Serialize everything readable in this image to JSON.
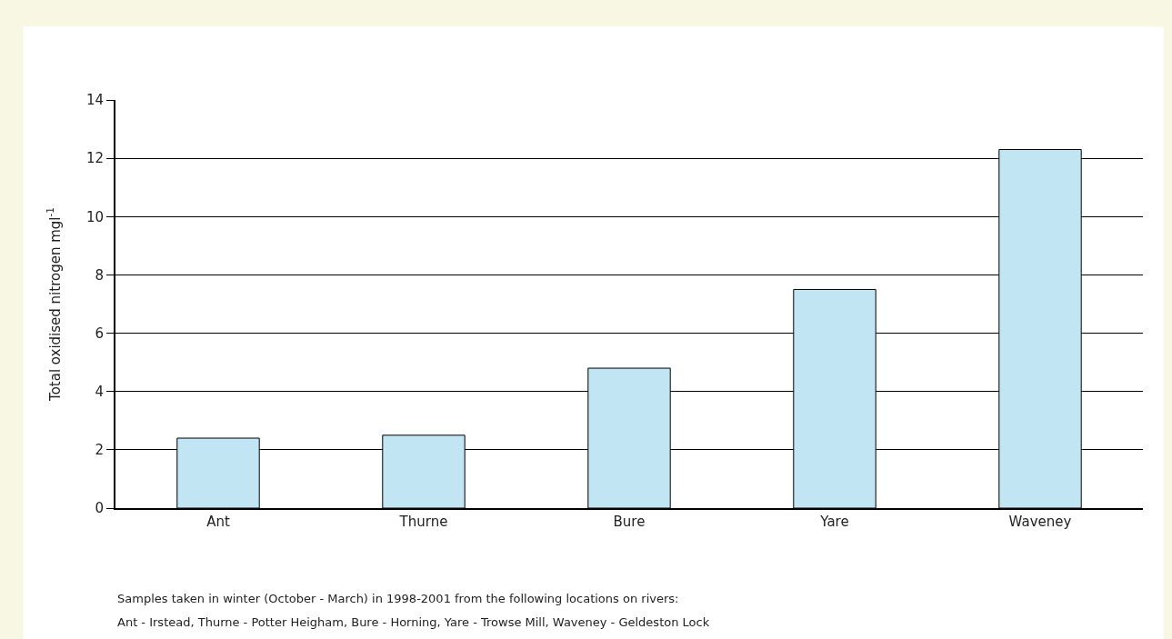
{
  "chart_data": {
    "type": "bar",
    "categories": [
      "Ant",
      "Thurne",
      "Bure",
      "Yare",
      "Waveney"
    ],
    "values": [
      2.4,
      2.5,
      4.8,
      7.5,
      12.3
    ],
    "color": "#c1e5f3",
    "ylabel": "Total oxidised nitrogen mgl$^{-1}$",
    "ylim": [
      0,
      14
    ],
    "yticks": [
      0,
      2,
      4,
      6,
      8,
      10,
      12,
      14
    ],
    "grid": "y",
    "annotations": [
      "Samples taken in winter (October - March) in 1998-2001 from the following locations on rivers:",
      "Ant - Irstead, Thurne - Potter Heigham, Bure - Horning, Yare - Trowse Mill, Waveney - Geldeston Lock"
    ]
  }
}
